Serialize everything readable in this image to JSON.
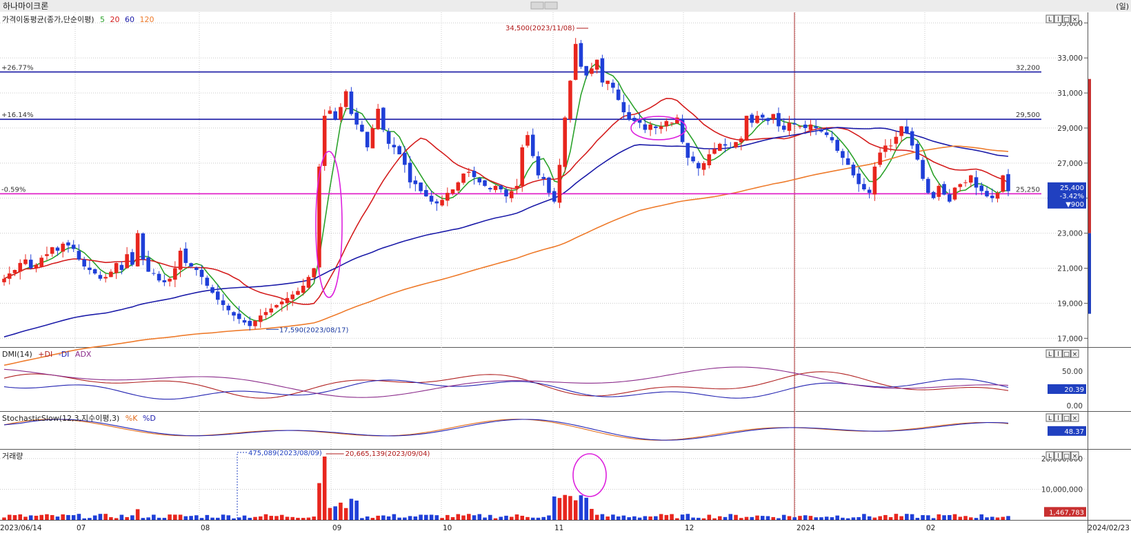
{
  "title": "하나마이크론",
  "unit": "(일)",
  "colors": {
    "up": "#e8261e",
    "down": "#1f3fd8",
    "ma5": "#2aa22a",
    "ma20": "#d41c1c",
    "ma60": "#1a1aa8",
    "ma120": "#ee7a2a",
    "hline": "#2222a8",
    "support": "#e020c8",
    "highlight": "#dd20dd",
    "pdi": "#b02020",
    "mdi": "#2020b0",
    "adx": "#8a2a8a",
    "grid": "#c8c8c8",
    "annotation": "#b01818",
    "annotation_low": "#1838a0"
  },
  "legend": {
    "price_label": "가격이동평균(종가,단순이평)",
    "ma_periods": [
      "5",
      "20",
      "60",
      "120"
    ],
    "dmi_label": "DMI(14)",
    "dmi_items": [
      "+DI",
      "-DI",
      "ADX"
    ],
    "stoch_label": "StochasticSlow(12,3,지수이평,3)",
    "stoch_items": [
      "%K",
      "%D"
    ],
    "volume_label": "거래량"
  },
  "panel_buttons": [
    "L",
    "l",
    "□",
    "×"
  ],
  "chart_data": {
    "type": "candlestick",
    "ticker": "하나마이크론",
    "price_axis": {
      "ylim": [
        16500,
        35600
      ],
      "ticks": [
        "35,000",
        "33,000",
        "31,000",
        "29,000",
        "27,000",
        "25,000",
        "23,000",
        "21,000",
        "19,000",
        "17,000"
      ],
      "tick_values": [
        35000,
        33000,
        31000,
        29000,
        27000,
        25000,
        23000,
        21000,
        19000,
        17000
      ]
    },
    "x_labels": [
      "2023/06/14",
      "07",
      "08",
      "09",
      "10",
      "11",
      "12",
      "2024",
      "02",
      "2024/02/23"
    ],
    "hlines": [
      {
        "value": 32200,
        "left_label": "+26.77%",
        "right_label": "32,200"
      },
      {
        "value": 29500,
        "left_label": "+16.14%",
        "right_label": "29,500"
      },
      {
        "value": 25250,
        "left_label": "-0.59%",
        "right_label": "25,250",
        "color": "support"
      }
    ],
    "annotations": {
      "high": {
        "value": 34500,
        "label": "34,500(2023/11/08)"
      },
      "low": {
        "value": 17590,
        "label": "17,590(2023/08/17)"
      },
      "vol_high": {
        "label": "20,665,139(2023/09/04)"
      },
      "vol_low": {
        "label": "475,089(2023/08/09)"
      }
    },
    "current": {
      "price": "25,400",
      "change_pct": "-3.42%",
      "change": "▼900"
    },
    "dmi_axis": {
      "ticks": [
        "50.00",
        "0.00"
      ],
      "current": "20.39"
    },
    "stoch_current": "48.37",
    "volume_axis": {
      "ticks": [
        "20,000,000",
        "10,000,000"
      ],
      "current": "1,467,783"
    },
    "price_series": [
      20400,
      20700,
      20900,
      21300,
      21500,
      21000,
      21200,
      21600,
      21800,
      22200,
      22000,
      22400,
      22300,
      22100,
      21500,
      21100,
      20900,
      20700,
      20400,
      20500,
      20800,
      21300,
      20900,
      21800,
      21200,
      23000,
      21500,
      20800,
      20700,
      20300,
      20200,
      20400,
      21000,
      22000,
      21300,
      21100,
      20900,
      20500,
      20000,
      19600,
      19200,
      18900,
      18600,
      18300,
      18100,
      17900,
      17700,
      18000,
      18300,
      18500,
      18700,
      18900,
      19100,
      19300,
      19500,
      19700,
      20000,
      20500,
      21000,
      26800,
      29700,
      30000,
      29500,
      30200,
      31100,
      29800,
      29200,
      28800,
      27900,
      29000,
      30100,
      28900,
      28100,
      27900,
      27500,
      26900,
      25900,
      25800,
      25400,
      25100,
      24800,
      24700,
      24900,
      25300,
      25500,
      25900,
      26400,
      26500,
      26200,
      25900,
      25700,
      25500,
      25700,
      25500,
      25100,
      25400,
      25700,
      27900,
      28600,
      27400,
      26300,
      26100,
      25300,
      24800,
      26900,
      29600,
      31700,
      33800,
      32500,
      32000,
      32400,
      32900,
      31600,
      31700,
      31300,
      30600,
      29900,
      29500,
      29400,
      29300,
      28900,
      29200,
      29000,
      29100,
      29400,
      29300,
      29600,
      28200,
      27300,
      27100,
      26700,
      27000,
      27500,
      27800,
      28100,
      28000,
      27900,
      28200,
      28400,
      29700,
      29300,
      29700,
      29600,
      29400,
      29800,
      29100,
      28900,
      29300,
      29200,
      29100,
      29000,
      29200,
      29000,
      28800,
      28600,
      28300,
      27700,
      27300,
      26900,
      26300,
      25800,
      25500,
      25300,
      26800,
      27600,
      28000,
      28000,
      28500,
      29100,
      28700,
      28000,
      27200,
      26100,
      25300,
      25000,
      25700,
      25200,
      24800,
      25600,
      25800,
      25900,
      26300,
      25600,
      25400,
      25100,
      25000,
      25300,
      26300,
      25400
    ]
  }
}
